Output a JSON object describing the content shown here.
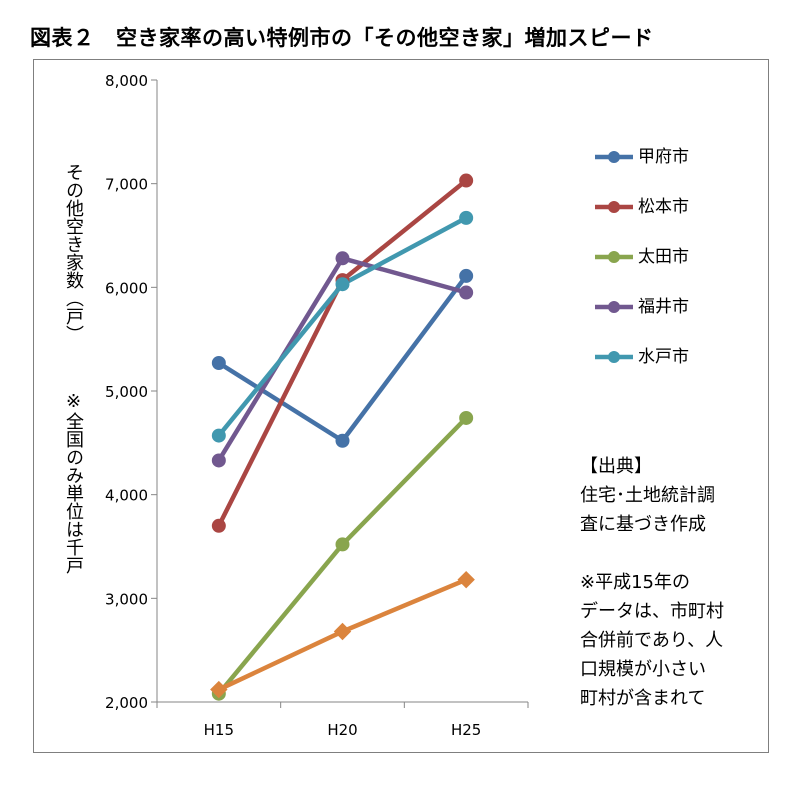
{
  "title": "図表２　空き家率の高い特例市の「その他空き家」増加スピード",
  "y_axis_title": "その他空き家数（戸）",
  "y_axis_note": "※全国のみ単位は千戸",
  "source_note": {
    "heading": "【出典】",
    "lines": [
      "住宅･土地統計調",
      "査に基づき作成",
      "",
      "※平成15年の",
      "データは、市町村",
      "合併前であり、人",
      "口規模が小さい",
      "町村が含まれて"
    ]
  },
  "colors": {
    "甲府市": "#4572a7",
    "松本市": "#aa4643",
    "太田市": "#89a54e",
    "福井市": "#71588f",
    "水戸市": "#4198af",
    "全国": "#db843d"
  },
  "chart_data": {
    "type": "line",
    "title": "図表２　空き家率の高い特例市の「その他空き家」増加スピード",
    "xlabel": "",
    "ylabel": "その他空き家数（戸）",
    "categories": [
      "H15",
      "H20",
      "H25"
    ],
    "ylim": [
      2000,
      8000
    ],
    "yticks": [
      2000,
      3000,
      4000,
      5000,
      6000,
      7000,
      8000
    ],
    "ytick_labels": [
      "2,000",
      "3,000",
      "4,000",
      "5,000",
      "6,000",
      "7,000",
      "8,000"
    ],
    "grid": false,
    "legend": "right",
    "series": [
      {
        "name": "甲府市",
        "values": [
          5270,
          4520,
          6110
        ],
        "marker": "circle",
        "in_legend": true
      },
      {
        "name": "松本市",
        "values": [
          3700,
          6070,
          7030
        ],
        "marker": "circle",
        "in_legend": true
      },
      {
        "name": "太田市",
        "values": [
          2080,
          3520,
          4740
        ],
        "marker": "circle",
        "in_legend": true
      },
      {
        "name": "福井市",
        "values": [
          4330,
          6280,
          5950
        ],
        "marker": "circle",
        "in_legend": true
      },
      {
        "name": "水戸市",
        "values": [
          4570,
          6030,
          6670
        ],
        "marker": "circle",
        "in_legend": true
      },
      {
        "name": "全国",
        "values": [
          2120,
          2680,
          3180
        ],
        "marker": "diamond",
        "in_legend": false
      }
    ]
  }
}
